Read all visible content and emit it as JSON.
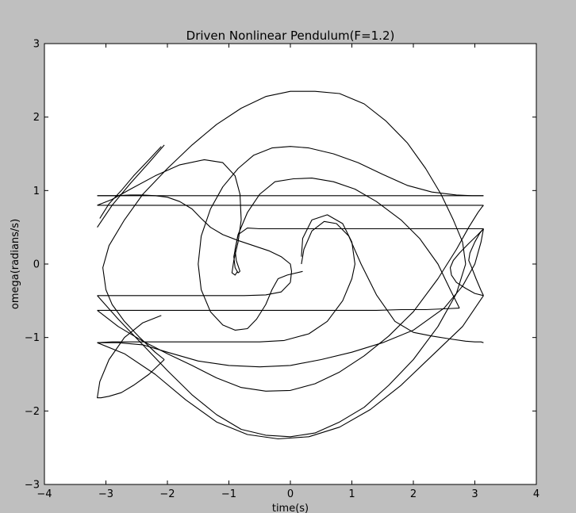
{
  "chart_data": {
    "type": "line",
    "title": "Driven Nonlinear Pendulum(F=1.2)",
    "xlabel": "time(s)",
    "ylabel": "omega(radians/s)",
    "xlim": [
      -4,
      4
    ],
    "ylim": [
      -3,
      3
    ],
    "xticks": [
      -4,
      -3,
      -2,
      -1,
      0,
      1,
      2,
      3,
      4
    ],
    "yticks": [
      -3,
      -2,
      -1,
      0,
      1,
      2,
      3
    ],
    "xtick_labels": [
      "−4",
      "−3",
      "−2",
      "−1",
      "0",
      "1",
      "2",
      "3",
      "4"
    ],
    "ytick_labels": [
      "−3",
      "−2",
      "−1",
      "0",
      "1",
      "2",
      "3"
    ],
    "grid": false,
    "line_color": "#000000",
    "series": [
      {
        "x": [
          0.18,
          0.22,
          0.35,
          0.55,
          0.75,
          0.95,
          1.15,
          1.4,
          1.7,
          2.0,
          2.3,
          2.6,
          2.85,
          3.0,
          3.1,
          3.14
        ],
        "y": [
          0.0,
          0.2,
          0.45,
          0.58,
          0.55,
          0.38,
          0.0,
          -0.42,
          -0.78,
          -0.93,
          -0.98,
          -1.02,
          -1.05,
          -1.06,
          -1.06,
          -1.07
        ]
      },
      {
        "x": [
          -3.14,
          -2.9,
          -2.6,
          -2.3,
          -2.0,
          -1.7,
          -1.3,
          -0.9,
          -0.5,
          -0.1,
          0.3,
          0.6,
          0.85,
          1.0,
          1.05,
          1.0,
          0.85,
          0.6,
          0.35,
          0.2,
          0.18
        ],
        "y": [
          -1.07,
          -1.06,
          -1.06,
          -1.06,
          -1.06,
          -1.06,
          -1.06,
          -1.06,
          -1.06,
          -1.04,
          -0.95,
          -0.78,
          -0.5,
          -0.2,
          0.0,
          0.3,
          0.55,
          0.67,
          0.6,
          0.35,
          0.1
        ]
      },
      {
        "x": [
          -3.14,
          -2.8,
          -2.4,
          -2.0,
          -1.5,
          -1.0,
          -0.5,
          0.0,
          0.5,
          1.0,
          1.5,
          2.0,
          2.5,
          2.8,
          3.0,
          3.1,
          3.14
        ],
        "y": [
          -1.07,
          -1.07,
          -1.1,
          -1.2,
          -1.32,
          -1.38,
          -1.4,
          -1.38,
          -1.3,
          -1.2,
          -1.07,
          -0.9,
          -0.6,
          -0.3,
          0.0,
          0.3,
          0.48
        ]
      },
      {
        "x": [
          3.14,
          2.9,
          2.6,
          2.2,
          1.8,
          1.4,
          1.0,
          0.6,
          0.2,
          -0.2,
          -0.5,
          -0.7,
          -0.85,
          -0.92,
          -0.9,
          -0.85,
          -0.82
        ],
        "y": [
          0.48,
          0.48,
          0.48,
          0.48,
          0.48,
          0.48,
          0.48,
          0.48,
          0.48,
          0.48,
          0.48,
          0.49,
          0.4,
          0.1,
          -0.05,
          -0.12,
          -0.1
        ]
      },
      {
        "x": [
          -0.82,
          -0.88,
          -0.9,
          -0.85,
          -0.7,
          -0.5,
          -0.25,
          0.05,
          0.35,
          0.7,
          1.05,
          1.4,
          1.8,
          2.1,
          2.4,
          2.6,
          2.75
        ],
        "y": [
          -0.1,
          0.05,
          0.2,
          0.4,
          0.7,
          0.95,
          1.12,
          1.16,
          1.17,
          1.12,
          1.02,
          0.85,
          0.6,
          0.35,
          0.0,
          -0.35,
          -0.6
        ]
      },
      {
        "x": [
          2.75,
          2.5,
          2.2,
          1.8,
          1.4,
          1.0,
          0.6,
          0.2,
          -0.2,
          -0.6,
          -1.0,
          -1.4,
          -1.8,
          -2.2,
          -2.6,
          -2.9,
          -3.14
        ],
        "y": [
          -0.6,
          -0.61,
          -0.62,
          -0.62,
          -0.63,
          -0.63,
          -0.63,
          -0.63,
          -0.63,
          -0.63,
          -0.63,
          -0.63,
          -0.63,
          -0.63,
          -0.63,
          -0.63,
          -0.63
        ]
      },
      {
        "x": [
          -3.14,
          -2.8,
          -2.4,
          -2.0,
          -1.6,
          -1.2,
          -0.8,
          -0.4,
          0.0,
          0.4,
          0.8,
          1.2,
          1.6,
          2.0,
          2.4,
          2.7,
          2.9,
          3.05,
          3.12,
          3.14
        ],
        "y": [
          -0.63,
          -0.85,
          -1.05,
          -1.22,
          -1.38,
          -1.55,
          -1.68,
          -1.73,
          -1.72,
          -1.63,
          -1.47,
          -1.25,
          -0.98,
          -0.65,
          -0.2,
          0.2,
          0.5,
          0.7,
          0.78,
          0.8
        ]
      },
      {
        "x": [
          3.14,
          2.8,
          2.4,
          2.0,
          1.6,
          1.2,
          0.8,
          0.4,
          0.0,
          -0.4,
          -0.8,
          -1.2,
          -1.6,
          -2.0,
          -2.4,
          -2.8,
          -3.14
        ],
        "y": [
          0.8,
          0.8,
          0.8,
          0.8,
          0.8,
          0.8,
          0.8,
          0.8,
          0.8,
          0.8,
          0.8,
          0.8,
          0.8,
          0.8,
          0.8,
          0.8,
          0.8
        ]
      },
      {
        "x": [
          -3.14,
          -2.9,
          -2.6,
          -2.2,
          -1.8,
          -1.4,
          -1.1,
          -0.9,
          -0.82,
          -0.8,
          -0.85,
          -0.92,
          -0.95,
          -0.9,
          -0.86
        ],
        "y": [
          0.8,
          0.88,
          1.02,
          1.2,
          1.35,
          1.42,
          1.38,
          1.2,
          0.95,
          0.6,
          0.3,
          0.05,
          -0.12,
          -0.15,
          -0.1
        ]
      },
      {
        "x": [
          0.2,
          -0.05,
          -0.2,
          -0.3,
          -0.4,
          -0.55,
          -0.7,
          -0.9,
          -1.1,
          -1.3,
          -1.45,
          -1.5,
          -1.45,
          -1.3,
          -1.1,
          -0.85,
          -0.6,
          -0.3,
          0.0,
          0.3,
          0.7,
          1.1,
          1.5,
          1.9,
          2.3,
          2.7,
          2.95,
          3.08,
          3.14
        ],
        "y": [
          -0.1,
          -0.15,
          -0.2,
          -0.35,
          -0.55,
          -0.75,
          -0.88,
          -0.9,
          -0.83,
          -0.65,
          -0.35,
          0.0,
          0.38,
          0.75,
          1.05,
          1.3,
          1.48,
          1.58,
          1.6,
          1.58,
          1.5,
          1.38,
          1.22,
          1.07,
          0.98,
          0.94,
          0.93,
          0.93,
          0.93
        ]
      },
      {
        "x": [
          3.14,
          2.8,
          2.4,
          2.0,
          1.6,
          1.2,
          0.8,
          0.4,
          0.0,
          -0.4,
          -0.8,
          -1.2,
          -1.6,
          -2.0,
          -2.4,
          -2.8,
          -3.14
        ],
        "y": [
          0.93,
          0.93,
          0.93,
          0.93,
          0.93,
          0.93,
          0.93,
          0.93,
          0.93,
          0.93,
          0.93,
          0.93,
          0.93,
          0.93,
          0.93,
          0.93,
          0.93
        ]
      },
      {
        "x": [
          -3.14,
          -2.85,
          -2.6,
          -2.4,
          -2.2,
          -2.0,
          -1.8,
          -1.6,
          -1.45,
          -1.3,
          -1.1,
          -0.85,
          -0.6,
          -0.35,
          -0.15,
          0.0,
          0.02,
          0.0
        ],
        "y": [
          0.93,
          0.93,
          0.94,
          0.94,
          0.93,
          0.91,
          0.85,
          0.75,
          0.62,
          0.5,
          0.4,
          0.32,
          0.25,
          0.18,
          0.1,
          0.0,
          -0.1,
          -0.25
        ]
      },
      {
        "x": [
          0.0,
          -0.15,
          -0.4,
          -0.75,
          -1.1,
          -1.5,
          -1.9,
          -2.3,
          -2.7,
          -3.0,
          -3.14
        ],
        "y": [
          -0.25,
          -0.38,
          -0.42,
          -0.43,
          -0.43,
          -0.43,
          -0.43,
          -0.43,
          -0.43,
          -0.43,
          -0.43
        ]
      },
      {
        "x": [
          -3.14,
          -2.8,
          -2.4,
          -2.0,
          -1.6,
          -1.2,
          -0.8,
          -0.4,
          0.0,
          0.4,
          0.8,
          1.2,
          1.6,
          2.0,
          2.4,
          2.7,
          2.85
        ],
        "y": [
          -0.43,
          -0.75,
          -1.1,
          -1.45,
          -1.78,
          -2.05,
          -2.25,
          -2.33,
          -2.35,
          -2.3,
          -2.15,
          -1.95,
          -1.65,
          -1.3,
          -0.85,
          -0.4,
          0.0
        ]
      },
      {
        "x": [
          2.85,
          2.8,
          2.65,
          2.45,
          2.2,
          1.9,
          1.55,
          1.2,
          0.8,
          0.4,
          0.0,
          -0.4,
          -0.8,
          -1.2,
          -1.6,
          -2.0,
          -2.4,
          -2.7,
          -2.95,
          -3.05,
          -3.0,
          -2.9,
          -2.7,
          -2.45,
          -2.2,
          -2.05
        ],
        "y": [
          0.0,
          0.3,
          0.6,
          0.95,
          1.3,
          1.65,
          1.95,
          2.18,
          2.32,
          2.35,
          2.35,
          2.28,
          2.12,
          1.9,
          1.62,
          1.3,
          0.95,
          0.6,
          0.25,
          -0.05,
          -0.35,
          -0.55,
          -0.78,
          -1.0,
          -1.2,
          -1.3
        ]
      },
      {
        "x": [
          -2.05,
          -2.3,
          -2.55,
          -2.75,
          -2.95,
          -3.08,
          -3.14,
          -3.1,
          -2.95,
          -2.7,
          -2.4,
          -2.1
        ],
        "y": [
          -1.3,
          -1.5,
          -1.65,
          -1.75,
          -1.8,
          -1.82,
          -1.82,
          -1.6,
          -1.3,
          -1.0,
          -0.8,
          -0.7
        ]
      },
      {
        "x": [
          -3.14,
          -2.9,
          -2.6,
          -2.3,
          -2.05
        ],
        "y": [
          0.5,
          0.8,
          1.1,
          1.38,
          1.62
        ]
      },
      {
        "x": [
          3.14,
          3.05,
          2.9,
          2.75,
          2.65,
          2.6,
          2.62,
          2.7,
          2.85,
          3.0,
          3.14
        ],
        "y": [
          0.48,
          0.4,
          0.28,
          0.15,
          0.05,
          -0.05,
          -0.15,
          -0.25,
          -0.33,
          -0.4,
          -0.43
        ]
      },
      {
        "x": [
          3.14,
          3.1,
          3.02,
          2.95,
          2.9,
          2.92,
          3.0,
          3.08,
          3.14
        ],
        "y": [
          -0.43,
          -0.36,
          -0.2,
          -0.05,
          0.05,
          0.15,
          0.3,
          0.42,
          0.48
        ]
      },
      {
        "x": [
          -3.14,
          -2.7,
          -2.2,
          -1.7,
          -1.2,
          -0.7,
          -0.2,
          0.3,
          0.8,
          1.3,
          1.8,
          2.3,
          2.8,
          3.14
        ],
        "y": [
          -1.07,
          -1.22,
          -1.5,
          -1.85,
          -2.15,
          -2.32,
          -2.38,
          -2.35,
          -2.22,
          -1.98,
          -1.65,
          -1.25,
          -0.85,
          -0.43
        ]
      },
      {
        "x": [
          -2.1,
          -2.3,
          -2.55,
          -2.75,
          -2.95,
          -3.1
        ],
        "y": [
          1.6,
          1.42,
          1.2,
          1.0,
          0.82,
          0.62
        ]
      }
    ]
  }
}
